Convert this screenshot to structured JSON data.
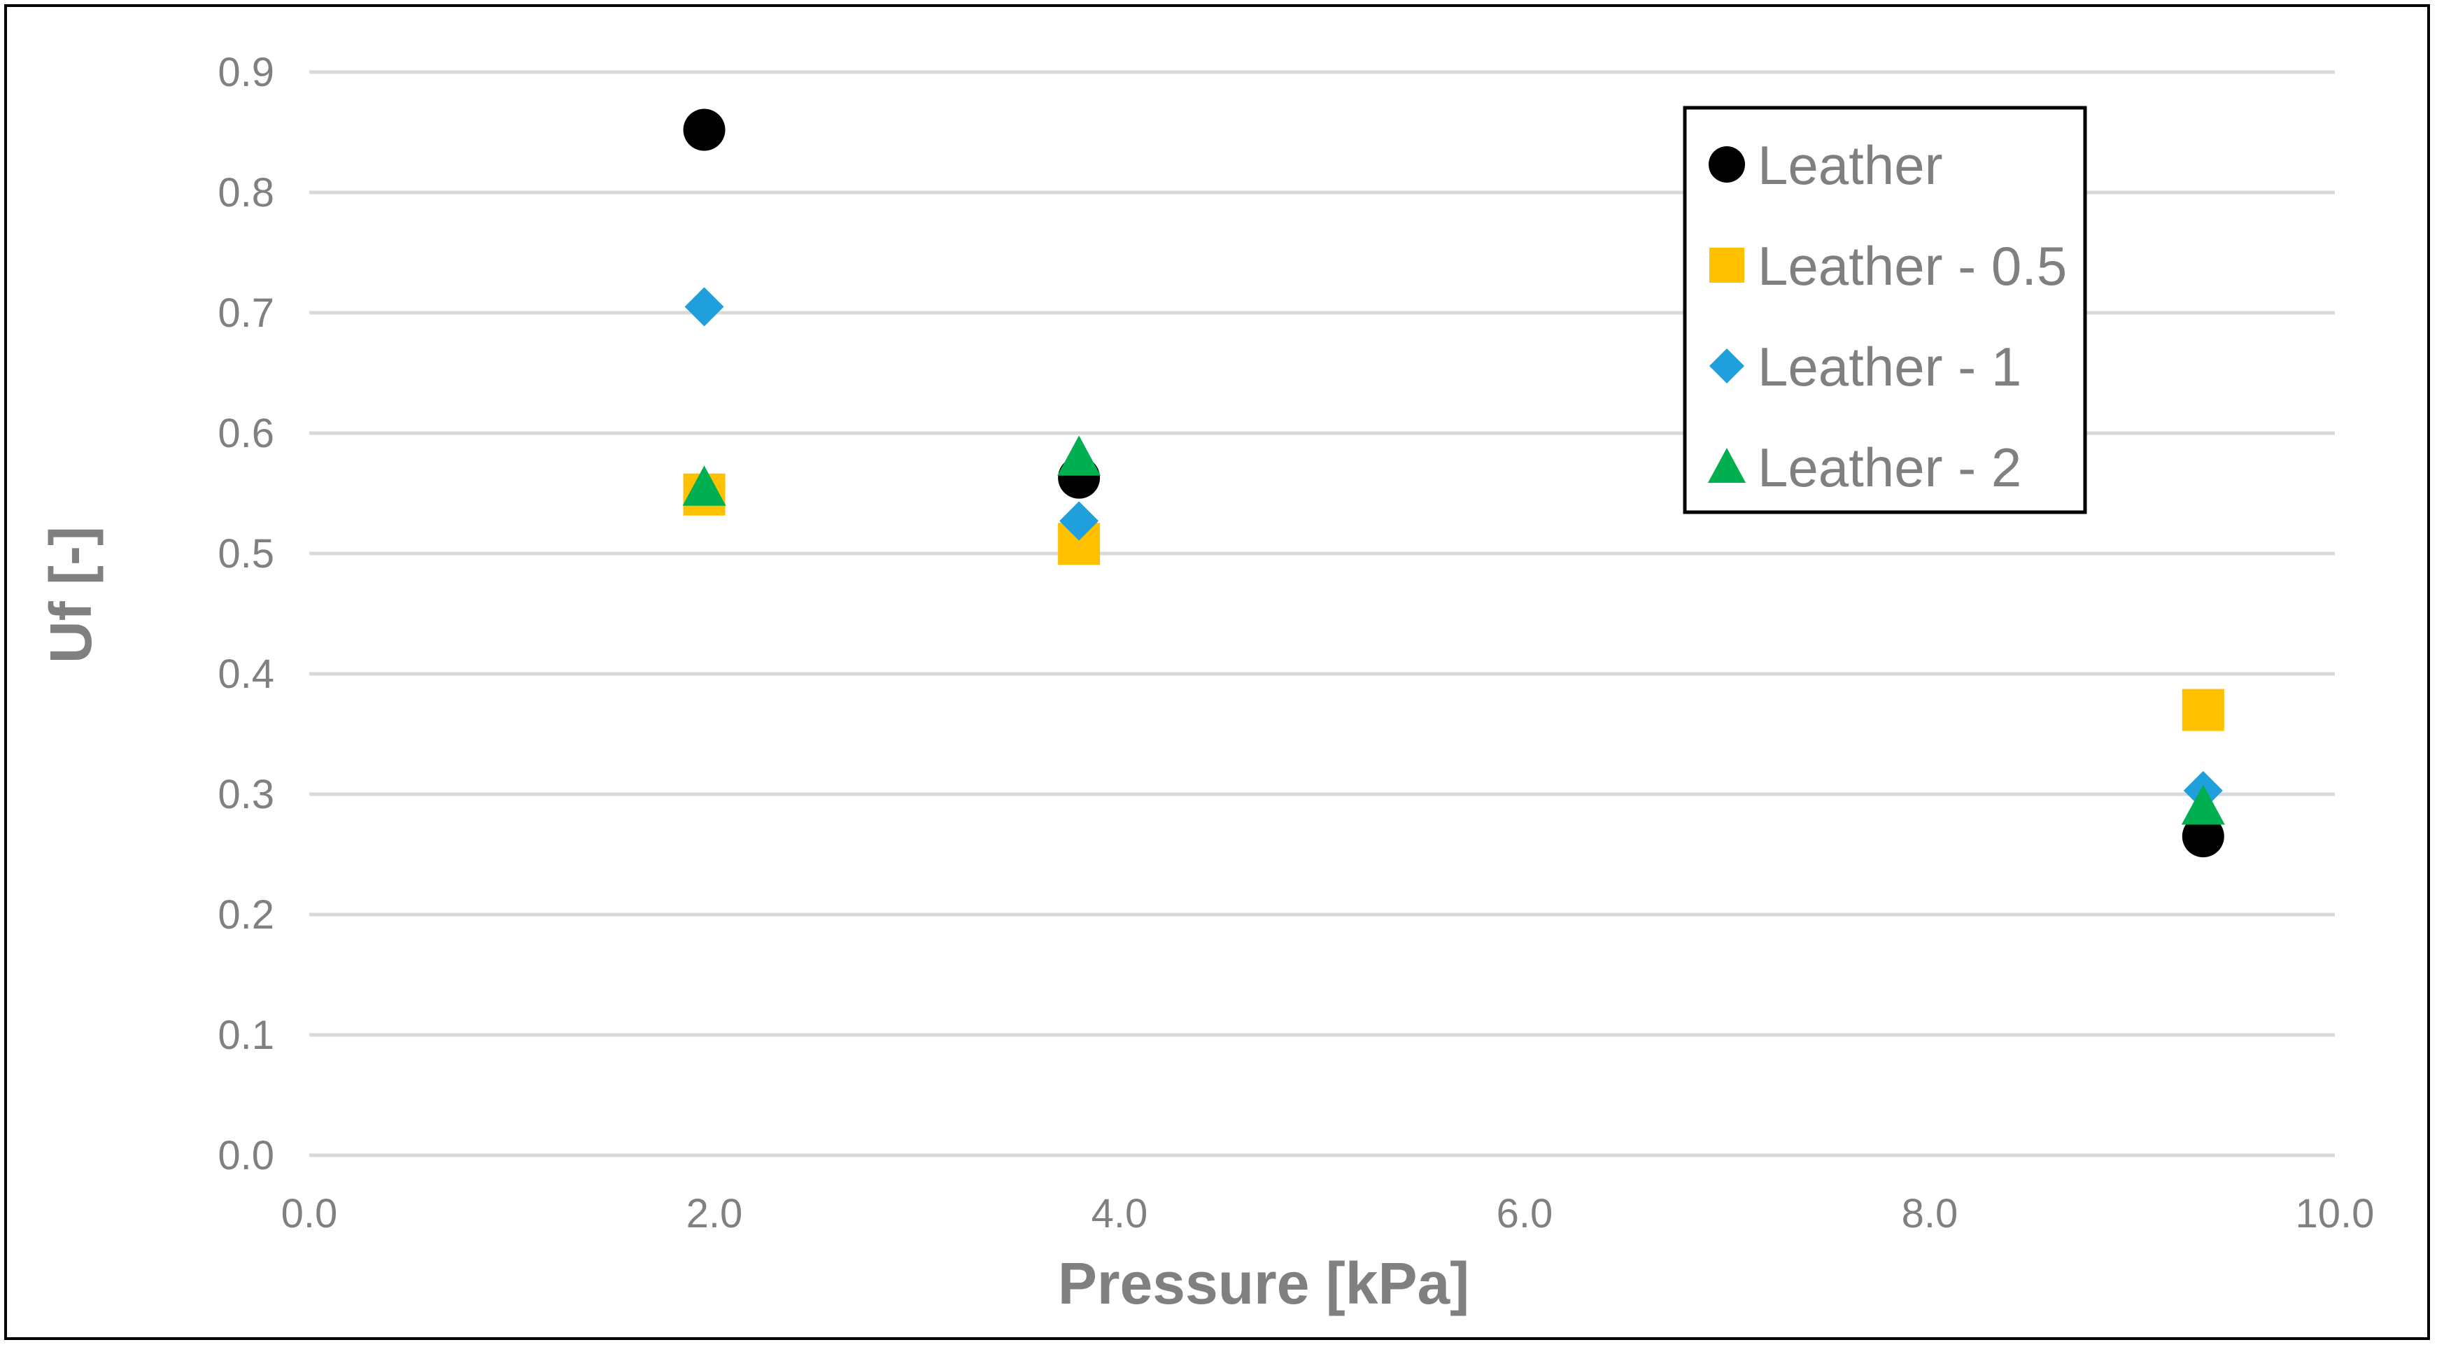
{
  "chart_data": {
    "type": "scatter",
    "title": "",
    "xlabel": "Pressure [kPa]",
    "ylabel": "Uf [-]",
    "xlim": [
      0,
      10
    ],
    "ylim": [
      0,
      0.9
    ],
    "xticks": [
      0,
      2,
      4,
      6,
      8,
      10
    ],
    "xtick_labels": [
      "0.0",
      "2.0",
      "4.0",
      "6.0",
      "8.0",
      "10.0"
    ],
    "yticks": [
      0,
      0.1,
      0.2,
      0.3,
      0.4,
      0.5,
      0.6,
      0.7,
      0.8,
      0.9
    ],
    "ytick_labels": [
      "0.0",
      "0.1",
      "0.2",
      "0.3",
      "0.4",
      "0.5",
      "0.6",
      "0.7",
      "0.8",
      "0.9"
    ],
    "grid": "horizontal",
    "legend_position": "top-right",
    "series": [
      {
        "name": "Leather",
        "marker": "circle",
        "color": "#000000",
        "x": [
          1.95,
          3.8,
          9.35
        ],
        "y": [
          0.852,
          0.563,
          0.265
        ]
      },
      {
        "name": "Leather - 0.5",
        "marker": "square",
        "color": "#FFC000",
        "x": [
          1.95,
          3.8,
          9.35
        ],
        "y": [
          0.549,
          0.508,
          0.37
        ]
      },
      {
        "name": "Leather - 1",
        "marker": "diamond",
        "color": "#1F9FDC",
        "x": [
          1.95,
          3.8,
          9.35
        ],
        "y": [
          0.705,
          0.527,
          0.303
        ]
      },
      {
        "name": "Leather - 2",
        "marker": "triangle",
        "color": "#00B050",
        "x": [
          1.95,
          3.8,
          9.35
        ],
        "y": [
          0.555,
          0.58,
          0.29
        ]
      }
    ]
  },
  "colors": {
    "grid": "#D9D9D9",
    "text": "#808080",
    "frame": "#000000"
  }
}
